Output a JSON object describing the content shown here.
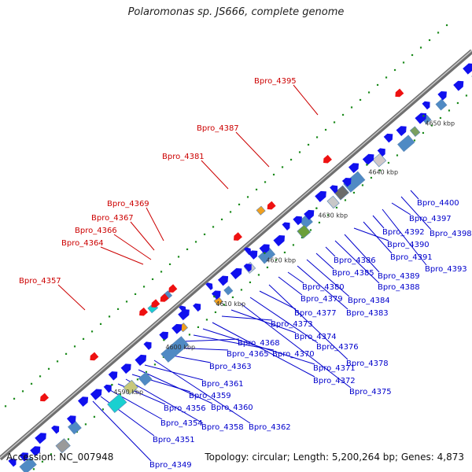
{
  "title": "Polaromonas sp. JS666, complete genome",
  "accession": "Accession: NC_007948",
  "summary": "Topology: circular; Length: 5,200,264 bp; Genes: 4,873",
  "colors": {
    "backbone": "#8a8a8a",
    "forward_gene": "#1010ee",
    "red_feature": "#ee1111",
    "green_dots": "#1b8a1b",
    "red_label": "#cc0000",
    "blue_label": "#0000cc"
  },
  "scale_ticks": [
    "4590 kbp",
    "4600 kbp",
    "4610 kbp",
    "4620 kbp",
    "4630 kbp",
    "4640 kbp",
    "4650 kbp"
  ],
  "red_labels": [
    "Bpro_4357",
    "Bpro_4364",
    "Bpro_4366",
    "Bpro_4367",
    "Bpro_4369",
    "Bpro_4381",
    "Bpro_4387",
    "Bpro_4395"
  ],
  "blue_labels": [
    "Bpro_4349",
    "Bpro_4351",
    "Bpro_4354",
    "Bpro_4356",
    "Bpro_4358",
    "Bpro_4359",
    "Bpro_4360",
    "Bpro_4361",
    "Bpro_4362",
    "Bpro_4363",
    "Bpro_4365",
    "Bpro_4368",
    "Bpro_4370",
    "Bpro_4371",
    "Bpro_4372",
    "Bpro_4373",
    "Bpro_4374",
    "Bpro_4375",
    "Bpro_4376",
    "Bpro_4377",
    "Bpro_4378",
    "Bpro_4379",
    "Bpro_4380",
    "Bpro_4383",
    "Bpro_4384",
    "Bpro_4385",
    "Bpro_4386",
    "Bpro_4388",
    "Bpro_4389",
    "Bpro_4390",
    "Bpro_4391",
    "Bpro_4392",
    "Bpro_4393",
    "Bpro_4397",
    "Bpro_4398",
    "Bpro_4400"
  ]
}
